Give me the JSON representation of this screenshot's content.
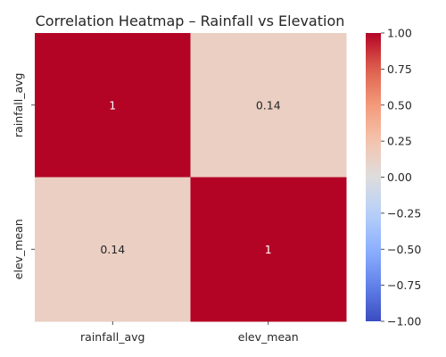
{
  "chart_data": {
    "type": "heatmap",
    "title": "Correlation Heatmap – Rainfall vs Elevation",
    "x_labels": [
      "rainfall_avg",
      "elev_mean"
    ],
    "y_labels": [
      "rainfall_avg",
      "elev_mean"
    ],
    "values": [
      [
        1,
        0.14
      ],
      [
        0.14,
        1
      ]
    ],
    "cell_labels": [
      [
        "1",
        "0.14"
      ],
      [
        "0.14",
        "1"
      ]
    ],
    "colormap": "coolwarm",
    "vmin": -1,
    "vmax": 1,
    "colorbar_ticks": [
      1.0,
      0.75,
      0.5,
      0.25,
      0.0,
      -0.25,
      -0.5,
      -0.75,
      -1.0
    ],
    "colorbar_tick_labels": [
      "1.00",
      "0.75",
      "0.50",
      "0.25",
      "0.00",
      "−0.25",
      "−0.50",
      "−0.75",
      "−1.00"
    ],
    "colors": {
      "high": "#b40426",
      "mid": "#dddddd",
      "low": "#3b4cc0"
    }
  }
}
